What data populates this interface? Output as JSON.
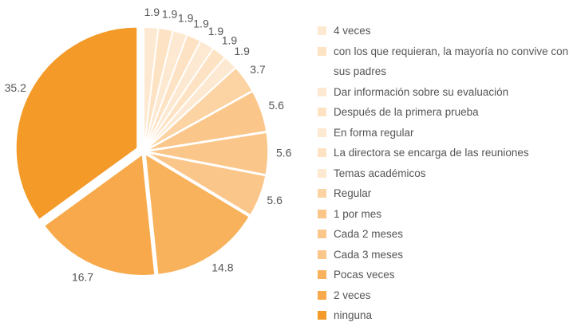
{
  "chart_data": {
    "type": "pie",
    "categories": [
      "4 veces",
      "con los que requieran, la mayoría no convive con sus padres",
      "Dar información sobre su evaluación",
      "Después de la primera prueba",
      "En forma regular",
      "La directora se encarga de las reuniones",
      "Temas académicos",
      "Regular",
      "1 por mes",
      "Cada 2 meses",
      "Cada 3 meses",
      "Pocas veces",
      "2 veces",
      "ninguna"
    ],
    "values": [
      1.9,
      1.9,
      1.9,
      1.9,
      1.9,
      1.9,
      1.9,
      3.7,
      5.6,
      5.6,
      5.6,
      14.8,
      16.7,
      35.2
    ],
    "colors": [
      "#fde9d2",
      "#fde3c4",
      "#fde9d2",
      "#fde3c4",
      "#fde9d2",
      "#fde3c4",
      "#fde9d2",
      "#fcd3a2",
      "#fbc68a",
      "#fbc68a",
      "#fbc68a",
      "#f8b25c",
      "#f7a94c",
      "#f39a28"
    ]
  }
}
